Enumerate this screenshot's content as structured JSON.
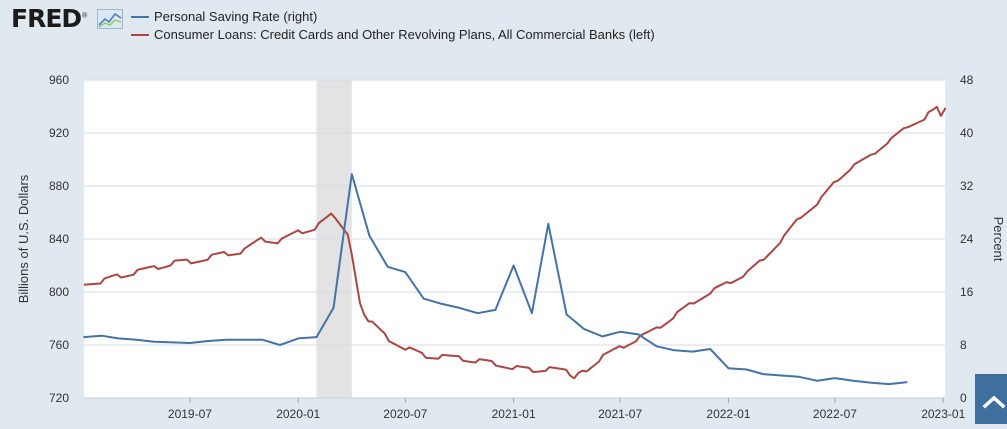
{
  "header": {
    "logo_text": "FRED",
    "logo_mark": "®",
    "logo_icon": "chart-line-icon"
  },
  "legend": [
    {
      "label": "Personal Saving Rate (right)",
      "color": "#4572a7"
    },
    {
      "label": "Consumer Loans: Credit Cards and Other Revolving Plans, All Commercial Banks (left)",
      "color": "#aa4643"
    }
  ],
  "colors": {
    "background": "#e1e9f0",
    "plot_bg": "#ffffff",
    "recession": "#e3e3e3",
    "grid": "#d6dde4",
    "series_left": "#aa4643",
    "series_right": "#4572a7",
    "corner_button": "#3f6f9c"
  },
  "chart_data": {
    "type": "line",
    "ylabel_left": "Billions of U.S. Dollars",
    "ylabel_right": "Percent",
    "ylim_left": [
      720,
      960
    ],
    "ylim_right": [
      0,
      48
    ],
    "x_range": [
      "2019-01-02",
      "2023-01-04"
    ],
    "grid": true,
    "legend_position": "top-left",
    "x_ticks": [
      "2019-07",
      "2020-01",
      "2020-07",
      "2021-01",
      "2021-07",
      "2022-01",
      "2022-07",
      "2023-01"
    ],
    "y_ticks_left": [
      720,
      760,
      800,
      840,
      880,
      920,
      960
    ],
    "y_ticks_right": [
      0,
      8,
      16,
      24,
      32,
      40,
      48
    ],
    "recession": {
      "start": "2020-02-01",
      "end": "2020-04-01"
    },
    "series": [
      {
        "name": "Personal Saving Rate (right)",
        "axis": "right",
        "frequency": "monthly",
        "points": [
          [
            "2019-01-01",
            9.2
          ],
          [
            "2019-02-01",
            9.4
          ],
          [
            "2019-03-01",
            9.0
          ],
          [
            "2019-04-01",
            8.8
          ],
          [
            "2019-05-01",
            8.5
          ],
          [
            "2019-06-01",
            8.4
          ],
          [
            "2019-07-01",
            8.3
          ],
          [
            "2019-08-01",
            8.6
          ],
          [
            "2019-09-01",
            8.8
          ],
          [
            "2019-10-01",
            8.8
          ],
          [
            "2019-11-01",
            8.8
          ],
          [
            "2019-12-01",
            8.0
          ],
          [
            "2020-01-01",
            9.0
          ],
          [
            "2020-02-01",
            9.2
          ],
          [
            "2020-03-01",
            13.6
          ],
          [
            "2020-04-01",
            33.8
          ],
          [
            "2020-05-01",
            24.5
          ],
          [
            "2020-06-01",
            19.8
          ],
          [
            "2020-07-01",
            19.0
          ],
          [
            "2020-08-01",
            15.0
          ],
          [
            "2020-09-01",
            14.2
          ],
          [
            "2020-10-01",
            13.6
          ],
          [
            "2020-11-01",
            12.8
          ],
          [
            "2020-12-01",
            13.3
          ],
          [
            "2021-01-01",
            20.0
          ],
          [
            "2021-02-01",
            12.8
          ],
          [
            "2021-03-01",
            26.3
          ],
          [
            "2021-04-01",
            12.6
          ],
          [
            "2021-05-01",
            10.4
          ],
          [
            "2021-06-01",
            9.3
          ],
          [
            "2021-07-01",
            10.0
          ],
          [
            "2021-08-01",
            9.6
          ],
          [
            "2021-09-01",
            7.8
          ],
          [
            "2021-10-01",
            7.2
          ],
          [
            "2021-11-01",
            7.0
          ],
          [
            "2021-12-01",
            7.4
          ],
          [
            "2022-01-01",
            4.5
          ],
          [
            "2022-02-01",
            4.3
          ],
          [
            "2022-03-01",
            3.6
          ],
          [
            "2022-04-01",
            3.4
          ],
          [
            "2022-05-01",
            3.2
          ],
          [
            "2022-06-01",
            2.6
          ],
          [
            "2022-07-01",
            3.0
          ],
          [
            "2022-08-01",
            2.6
          ],
          [
            "2022-09-01",
            2.3
          ],
          [
            "2022-10-01",
            2.1
          ],
          [
            "2022-11-01",
            2.4
          ]
        ]
      },
      {
        "name": "Consumer Loans: Credit Cards and Other Revolving Plans, All Commercial Banks (left)",
        "axis": "left",
        "frequency": "weekly",
        "anchors": [
          [
            "2019-01-02",
            807
          ],
          [
            "2019-02-01",
            808
          ],
          [
            "2019-03-01",
            812
          ],
          [
            "2019-04-01",
            815
          ],
          [
            "2019-05-01",
            818
          ],
          [
            "2019-06-01",
            822
          ],
          [
            "2019-07-01",
            823
          ],
          [
            "2019-08-01",
            826
          ],
          [
            "2019-09-01",
            829
          ],
          [
            "2019-10-01",
            831
          ],
          [
            "2019-11-01",
            840
          ],
          [
            "2019-12-01",
            838
          ],
          [
            "2020-01-01",
            845
          ],
          [
            "2020-02-01",
            849
          ],
          [
            "2020-03-01",
            859
          ],
          [
            "2020-03-25",
            845
          ],
          [
            "2020-04-15",
            790
          ],
          [
            "2020-05-01",
            778
          ],
          [
            "2020-06-01",
            765
          ],
          [
            "2020-07-01",
            758
          ],
          [
            "2020-08-01",
            752
          ],
          [
            "2020-09-01",
            751
          ],
          [
            "2020-10-01",
            750
          ],
          [
            "2020-11-01",
            748
          ],
          [
            "2020-12-01",
            746
          ],
          [
            "2021-01-01",
            743
          ],
          [
            "2021-02-01",
            741
          ],
          [
            "2021-03-01",
            742
          ],
          [
            "2021-04-01",
            740
          ],
          [
            "2021-04-15",
            736
          ],
          [
            "2021-05-01",
            740
          ],
          [
            "2021-06-01",
            751
          ],
          [
            "2021-07-01",
            758
          ],
          [
            "2021-08-01",
            765
          ],
          [
            "2021-09-01",
            772
          ],
          [
            "2021-10-01",
            782
          ],
          [
            "2021-11-01",
            792
          ],
          [
            "2021-12-01",
            800
          ],
          [
            "2022-01-01",
            807
          ],
          [
            "2022-02-01",
            814
          ],
          [
            "2022-03-01",
            825
          ],
          [
            "2022-04-01",
            839
          ],
          [
            "2022-05-01",
            856
          ],
          [
            "2022-06-01",
            867
          ],
          [
            "2022-07-01",
            883
          ],
          [
            "2022-08-01",
            895
          ],
          [
            "2022-09-01",
            903
          ],
          [
            "2022-10-01",
            914
          ],
          [
            "2022-11-01",
            925
          ],
          [
            "2022-12-01",
            931
          ],
          [
            "2022-12-10",
            937
          ],
          [
            "2022-12-20",
            940
          ],
          [
            "2022-12-27",
            933
          ],
          [
            "2023-01-04",
            939
          ]
        ]
      }
    ]
  }
}
